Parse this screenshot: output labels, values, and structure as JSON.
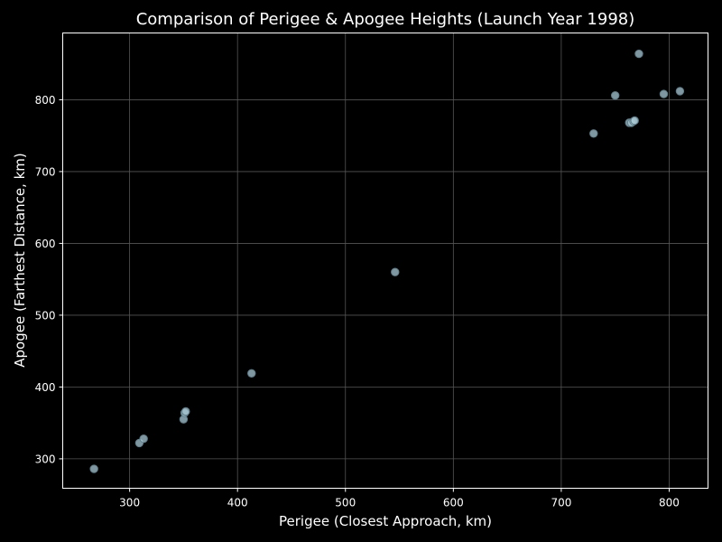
{
  "colors": {
    "background": "#000000",
    "axes_background": "#000000",
    "spine": "#ffffff",
    "grid": "#555555",
    "text": "#ffffff",
    "marker_fill": "#a9c9d6",
    "marker_edge": "#5f7f8c"
  },
  "chart_data": {
    "type": "scatter",
    "title": "Comparison of Perigee & Apogee Heights (Launch Year 1998)",
    "xlabel": "Perigee (Closest Approach, km)",
    "ylabel": "Apogee (Farthest Distance, km)",
    "xlim": [
      238,
      836
    ],
    "ylim": [
      259,
      893
    ],
    "xticks": [
      300,
      400,
      500,
      600,
      700,
      800
    ],
    "yticks": [
      300,
      400,
      500,
      600,
      700,
      800
    ],
    "grid": true,
    "marker_alpha": 0.75,
    "points": [
      {
        "x": 267,
        "y": 286
      },
      {
        "x": 309,
        "y": 322
      },
      {
        "x": 313,
        "y": 328
      },
      {
        "x": 350,
        "y": 355
      },
      {
        "x": 351,
        "y": 364
      },
      {
        "x": 352,
        "y": 366
      },
      {
        "x": 413,
        "y": 419
      },
      {
        "x": 546,
        "y": 560
      },
      {
        "x": 730,
        "y": 753
      },
      {
        "x": 750,
        "y": 806
      },
      {
        "x": 763,
        "y": 768
      },
      {
        "x": 765,
        "y": 768
      },
      {
        "x": 767,
        "y": 770
      },
      {
        "x": 768,
        "y": 771
      },
      {
        "x": 772,
        "y": 864
      },
      {
        "x": 795,
        "y": 808
      },
      {
        "x": 810,
        "y": 812
      }
    ]
  }
}
